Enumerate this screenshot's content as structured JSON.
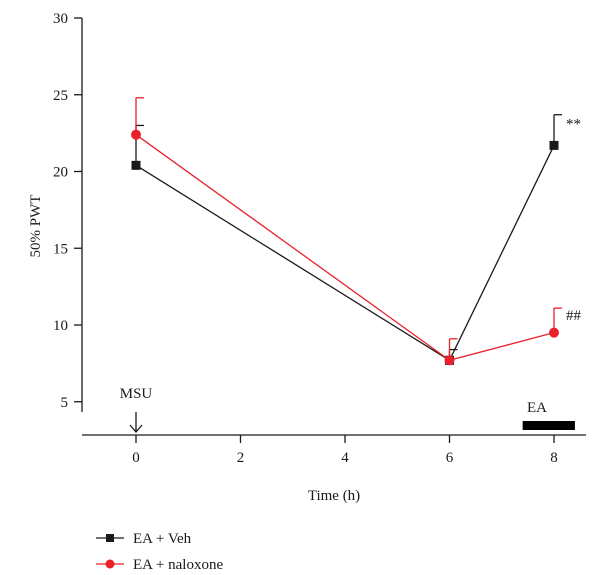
{
  "chart_data": {
    "type": "line",
    "title": "",
    "xlabel": "Time (h)",
    "ylabel": "50% PWT",
    "xlim": [
      -1,
      9
    ],
    "ylim": [
      2.5,
      30
    ],
    "xticks": [
      0,
      2,
      4,
      6,
      8
    ],
    "yticks": [
      5,
      10,
      15,
      20,
      25,
      30
    ],
    "grid": false,
    "legend_position": "bottom-left",
    "series": [
      {
        "name": "EA + Veh",
        "color": "#1a1a1a",
        "marker": "square",
        "x": [
          0,
          6,
          8
        ],
        "y": [
          20.4,
          7.7,
          21.7
        ],
        "error": [
          2.6,
          0.7,
          2.0
        ]
      },
      {
        "name": "EA + naloxone",
        "color": "#e8212b",
        "marker": "circle",
        "x": [
          0,
          6,
          8
        ],
        "y": [
          22.4,
          7.7,
          9.5
        ],
        "error": [
          2.4,
          1.4,
          1.6
        ]
      }
    ],
    "annotations": [
      {
        "text": "**",
        "series": 0,
        "x": 8
      },
      {
        "text": "##",
        "series": 1,
        "x": 8
      }
    ],
    "markers": {
      "injection_label": "MSU",
      "injection_time": 0,
      "treatment_label": "EA",
      "treatment_start": 7.4,
      "treatment_end": 8.4
    }
  }
}
